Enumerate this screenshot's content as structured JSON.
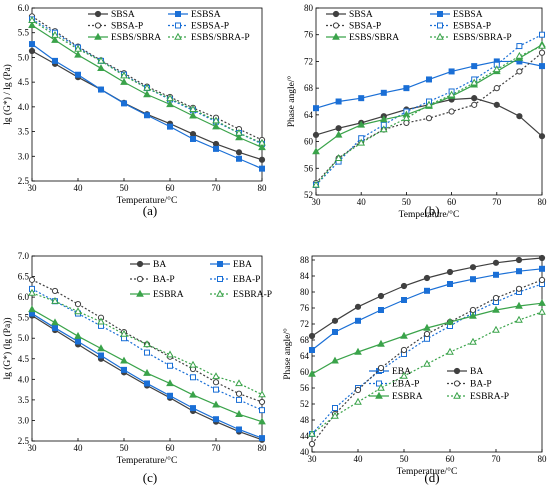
{
  "chart_data": [
    {
      "panel": "(a)",
      "type": "line",
      "xlabel": "Temperature/°C",
      "ylabel": "lg (G*) / lg (Pa)",
      "xlim": [
        30,
        80
      ],
      "ylim": [
        2.5,
        6.0
      ],
      "xticks": [
        30,
        40,
        50,
        60,
        70,
        80
      ],
      "yticks": [
        2.5,
        3.0,
        3.5,
        4.0,
        4.5,
        5.0,
        5.5,
        6.0
      ],
      "legend_columns": 2,
      "legend_placement": "top-right",
      "series": [
        {
          "name": "SBSA",
          "color": "#404040",
          "marker": "circle",
          "filled": true,
          "dashed": false,
          "x": [
            30,
            35,
            40,
            45,
            50,
            55,
            60,
            65,
            70,
            75,
            80
          ],
          "y": [
            5.13,
            4.87,
            4.6,
            4.35,
            4.08,
            3.85,
            3.66,
            3.45,
            3.25,
            3.08,
            2.93
          ]
        },
        {
          "name": "ESBSA",
          "color": "#1a6fd6",
          "marker": "square",
          "filled": true,
          "dashed": false,
          "x": [
            30,
            35,
            40,
            45,
            50,
            55,
            60,
            65,
            70,
            75,
            80
          ],
          "y": [
            5.27,
            4.93,
            4.65,
            4.35,
            4.07,
            3.83,
            3.6,
            3.35,
            3.15,
            2.95,
            2.75
          ]
        },
        {
          "name": "SBSA-P",
          "color": "#404040",
          "marker": "circle",
          "filled": false,
          "dashed": true,
          "x": [
            30,
            35,
            40,
            45,
            50,
            55,
            60,
            65,
            70,
            75,
            80
          ],
          "y": [
            5.83,
            5.53,
            5.22,
            4.94,
            4.68,
            4.41,
            4.2,
            3.98,
            3.78,
            3.55,
            3.33
          ]
        },
        {
          "name": "ESBSA-P",
          "color": "#1a6fd6",
          "marker": "square",
          "filled": false,
          "dashed": true,
          "x": [
            30,
            35,
            40,
            45,
            50,
            55,
            60,
            65,
            70,
            75,
            80
          ],
          "y": [
            5.77,
            5.5,
            5.2,
            4.93,
            4.65,
            4.38,
            4.15,
            3.93,
            3.7,
            3.47,
            3.25
          ]
        },
        {
          "name": "ESBS/SBRA",
          "color": "#3aa34a",
          "marker": "triangle",
          "filled": true,
          "dashed": false,
          "x": [
            30,
            35,
            40,
            45,
            50,
            55,
            60,
            65,
            70,
            75,
            80
          ],
          "y": [
            5.65,
            5.35,
            5.05,
            4.78,
            4.5,
            4.25,
            4.05,
            3.82,
            3.6,
            3.38,
            3.18
          ]
        },
        {
          "name": "ESBS/SBRA-P",
          "color": "#3aa34a",
          "marker": "triangle",
          "filled": false,
          "dashed": true,
          "x": [
            30,
            35,
            40,
            45,
            50,
            55,
            60,
            65,
            70,
            75,
            80
          ],
          "y": [
            5.75,
            5.45,
            5.17,
            4.93,
            4.63,
            4.38,
            4.17,
            3.95,
            3.72,
            3.47,
            3.27
          ]
        }
      ]
    },
    {
      "panel": "(b)",
      "type": "line",
      "xlabel": "Temperature/°C",
      "ylabel": "Phase angle/°",
      "xlim": [
        30,
        80
      ],
      "ylim": [
        52,
        80
      ],
      "xticks": [
        30,
        40,
        50,
        60,
        70,
        80
      ],
      "yticks": [
        52,
        56,
        60,
        64,
        68,
        72,
        76,
        80
      ],
      "legend_columns": 2,
      "legend_placement": "top",
      "series": [
        {
          "name": "SBSA",
          "color": "#404040",
          "marker": "circle",
          "filled": true,
          "dashed": false,
          "x": [
            30,
            35,
            40,
            45,
            50,
            55,
            60,
            65,
            70,
            75,
            80
          ],
          "y": [
            61.0,
            62.0,
            62.8,
            63.8,
            64.8,
            65.5,
            66.3,
            66.5,
            65.5,
            63.8,
            60.8
          ]
        },
        {
          "name": "ESBSA",
          "color": "#1a6fd6",
          "marker": "square",
          "filled": true,
          "dashed": false,
          "x": [
            30,
            35,
            40,
            45,
            50,
            55,
            60,
            65,
            70,
            75,
            80
          ],
          "y": [
            65.0,
            66.0,
            66.5,
            67.3,
            68.0,
            69.3,
            70.5,
            71.3,
            72.0,
            72.0,
            71.3
          ]
        },
        {
          "name": "SBSA-P",
          "color": "#404040",
          "marker": "circle",
          "filled": false,
          "dashed": true,
          "x": [
            30,
            35,
            40,
            45,
            50,
            55,
            60,
            65,
            70,
            75,
            80
          ],
          "y": [
            53.8,
            57.5,
            60.0,
            61.8,
            62.8,
            63.5,
            64.5,
            65.5,
            68.0,
            70.5,
            73.3
          ]
        },
        {
          "name": "ESBSA-P",
          "color": "#1a6fd6",
          "marker": "square",
          "filled": false,
          "dashed": true,
          "x": [
            30,
            35,
            40,
            45,
            50,
            55,
            60,
            65,
            70,
            75,
            80
          ],
          "y": [
            53.5,
            57.0,
            60.5,
            62.5,
            64.5,
            66.0,
            67.5,
            69.3,
            71.5,
            74.3,
            76.0
          ]
        },
        {
          "name": "ESBS/SBRA",
          "color": "#3aa34a",
          "marker": "triangle",
          "filled": true,
          "dashed": false,
          "x": [
            30,
            35,
            40,
            45,
            50,
            55,
            60,
            65,
            70,
            75,
            80
          ],
          "y": [
            58.5,
            61.0,
            62.5,
            63.3,
            64.0,
            65.3,
            66.8,
            68.5,
            70.5,
            72.5,
            74.5
          ]
        },
        {
          "name": "ESBS/SBRA-P",
          "color": "#3aa34a",
          "marker": "triangle",
          "filled": false,
          "dashed": true,
          "x": [
            30,
            35,
            40,
            45,
            50,
            55,
            60,
            65,
            70,
            75,
            80
          ],
          "y": [
            53.5,
            57.5,
            59.8,
            61.8,
            63.5,
            65.5,
            67.0,
            68.8,
            70.8,
            72.8,
            74.3
          ]
        }
      ]
    },
    {
      "panel": "(c)",
      "type": "line",
      "xlabel": "Temperature/°C",
      "ylabel": "lg (G*) (lg (Pa))",
      "xlim": [
        30,
        80
      ],
      "ylim": [
        2.5,
        7.0
      ],
      "xticks": [
        30,
        40,
        50,
        60,
        70,
        80
      ],
      "yticks": [
        2.5,
        3.0,
        3.5,
        4.0,
        4.5,
        5.0,
        5.5,
        6.0,
        6.5,
        7.0
      ],
      "legend_columns": 2,
      "legend_placement": "top-right",
      "series": [
        {
          "name": "BA",
          "color": "#404040",
          "marker": "circle",
          "filled": true,
          "dashed": false,
          "x": [
            30,
            35,
            40,
            45,
            50,
            55,
            60,
            65,
            70,
            75,
            80
          ],
          "y": [
            5.55,
            5.2,
            4.85,
            4.5,
            4.17,
            3.85,
            3.55,
            3.23,
            2.97,
            2.73,
            2.53
          ]
        },
        {
          "name": "EBA",
          "color": "#1a6fd6",
          "marker": "square",
          "filled": true,
          "dashed": false,
          "x": [
            30,
            35,
            40,
            45,
            50,
            55,
            60,
            65,
            70,
            75,
            80
          ],
          "y": [
            5.6,
            5.25,
            4.92,
            4.58,
            4.23,
            3.9,
            3.6,
            3.3,
            3.03,
            2.78,
            2.57
          ]
        },
        {
          "name": "BA-P",
          "color": "#404040",
          "marker": "circle",
          "filled": false,
          "dashed": true,
          "x": [
            30,
            35,
            40,
            45,
            50,
            55,
            60,
            65,
            70,
            75,
            80
          ],
          "y": [
            6.42,
            6.15,
            5.83,
            5.5,
            5.15,
            4.85,
            4.55,
            4.25,
            3.93,
            3.65,
            3.45
          ]
        },
        {
          "name": "EBA-P",
          "color": "#1a6fd6",
          "marker": "square",
          "filled": false,
          "dashed": true,
          "x": [
            30,
            35,
            40,
            45,
            50,
            55,
            60,
            65,
            70,
            75,
            80
          ],
          "y": [
            6.2,
            5.9,
            5.6,
            5.3,
            5.0,
            4.65,
            4.33,
            4.05,
            3.75,
            3.5,
            3.25
          ]
        },
        {
          "name": "ESBRA",
          "color": "#3aa34a",
          "marker": "triangle",
          "filled": true,
          "dashed": false,
          "x": [
            30,
            35,
            40,
            45,
            50,
            55,
            60,
            65,
            70,
            75,
            80
          ],
          "y": [
            5.7,
            5.38,
            5.05,
            4.75,
            4.45,
            4.15,
            3.9,
            3.62,
            3.38,
            3.15,
            2.97
          ]
        },
        {
          "name": "ESBRA-P",
          "color": "#3aa34a",
          "marker": "triangle",
          "filled": false,
          "dashed": true,
          "x": [
            30,
            35,
            40,
            45,
            50,
            55,
            60,
            65,
            70,
            75,
            80
          ],
          "y": [
            6.1,
            5.9,
            5.65,
            5.4,
            5.1,
            4.85,
            4.6,
            4.35,
            4.07,
            3.9,
            3.63
          ]
        }
      ]
    },
    {
      "panel": "(d)",
      "type": "line",
      "xlabel": "Temperature/°C",
      "ylabel": "Phase angle/°",
      "xlim": [
        30,
        80
      ],
      "ylim": [
        40,
        89
      ],
      "xticks": [
        30,
        40,
        50,
        60,
        70,
        80
      ],
      "yticks": [
        40,
        44,
        48,
        52,
        56,
        60,
        64,
        68,
        72,
        76,
        80,
        84,
        88
      ],
      "legend_columns": 2,
      "legend_placement": "bottom-right",
      "series": [
        {
          "name": "EBA",
          "color": "#1a6fd6",
          "marker": "square",
          "filled": true,
          "dashed": false,
          "x": [
            30,
            35,
            40,
            45,
            50,
            55,
            60,
            65,
            70,
            75,
            80
          ],
          "y": [
            65.5,
            70.0,
            72.8,
            75.5,
            78.0,
            80.3,
            82.0,
            83.2,
            84.3,
            85.2,
            85.8
          ]
        },
        {
          "name": "BA",
          "color": "#404040",
          "marker": "circle",
          "filled": true,
          "dashed": false,
          "x": [
            30,
            35,
            40,
            45,
            50,
            55,
            60,
            65,
            70,
            75,
            80
          ],
          "y": [
            69.0,
            72.8,
            76.3,
            79.0,
            81.5,
            83.5,
            85.0,
            86.2,
            87.3,
            88.0,
            88.5
          ]
        },
        {
          "name": "EBA-P",
          "color": "#1a6fd6",
          "marker": "square",
          "filled": false,
          "dashed": true,
          "x": [
            30,
            35,
            40,
            45,
            50,
            55,
            60,
            65,
            70,
            75,
            80
          ],
          "y": [
            44.5,
            51.0,
            56.0,
            60.5,
            64.5,
            68.3,
            71.5,
            74.8,
            77.5,
            80.0,
            82.0
          ]
        },
        {
          "name": "BA-P",
          "color": "#404040",
          "marker": "circle",
          "filled": false,
          "dashed": true,
          "x": [
            30,
            35,
            40,
            45,
            50,
            55,
            60,
            65,
            70,
            75,
            80
          ],
          "y": [
            42.0,
            49.5,
            55.5,
            61.0,
            65.5,
            69.5,
            72.5,
            75.5,
            78.5,
            80.8,
            83.0
          ]
        },
        {
          "name": "ESBRA",
          "color": "#3aa34a",
          "marker": "triangle",
          "filled": true,
          "dashed": false,
          "x": [
            30,
            35,
            40,
            45,
            50,
            55,
            60,
            65,
            70,
            75,
            80
          ],
          "y": [
            59.5,
            62.8,
            65.0,
            67.0,
            69.0,
            71.0,
            72.5,
            74.0,
            75.5,
            76.5,
            77.2
          ]
        },
        {
          "name": "ESBRA-P",
          "color": "#3aa34a",
          "marker": "triangle",
          "filled": false,
          "dashed": true,
          "x": [
            30,
            35,
            40,
            45,
            50,
            55,
            60,
            65,
            70,
            75,
            80
          ],
          "y": [
            44.5,
            49.0,
            52.5,
            56.0,
            59.0,
            62.0,
            65.0,
            67.5,
            70.5,
            73.0,
            75.0
          ]
        }
      ]
    }
  ]
}
